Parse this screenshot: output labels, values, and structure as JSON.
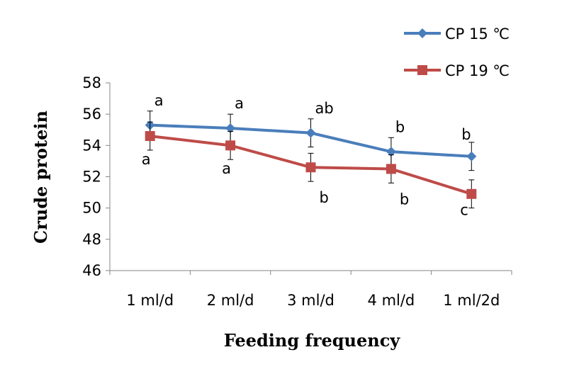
{
  "chart_data": {
    "type": "line",
    "title": "",
    "xlabel": "Feeding frequency",
    "ylabel": "Crude protein",
    "ylim": [
      46,
      58
    ],
    "yticks": [
      "46",
      "48",
      "50",
      "52",
      "54",
      "56",
      "58"
    ],
    "grid": false,
    "legend_position": "top-right",
    "categories": [
      "1 ml/d",
      "2 ml/d",
      "3 ml/d",
      "4 ml/d",
      "1 ml/2d"
    ],
    "series": [
      {
        "name": "CP 15 ℃",
        "color": "#4A7EBB",
        "marker": "diamond",
        "values": [
          55.3,
          55.1,
          54.8,
          53.6,
          53.3
        ],
        "errors": [
          0.9,
          0.9,
          0.9,
          0.9,
          0.9
        ],
        "letters": [
          "a",
          "a",
          "ab",
          "b",
          "b"
        ]
      },
      {
        "name": "CP 19 ℃",
        "color": "#BE4B48",
        "marker": "square",
        "values": [
          54.6,
          54.0,
          52.6,
          52.5,
          50.9
        ],
        "errors": [
          0.9,
          0.9,
          0.9,
          0.9,
          0.9
        ],
        "letters": [
          "a",
          "a",
          "b",
          "b",
          "c"
        ]
      }
    ]
  }
}
